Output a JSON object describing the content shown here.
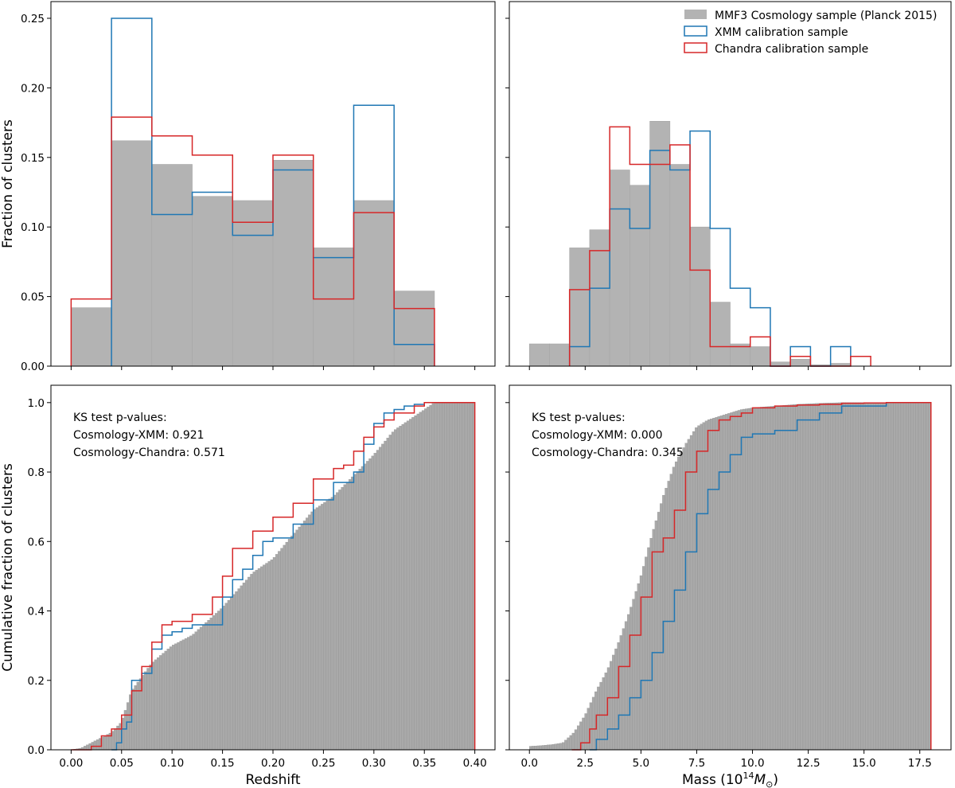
{
  "chart_data": [
    {
      "id": "hist-redshift",
      "type": "histogram",
      "title": "",
      "xlabel": "",
      "ylabel": "Fraction of clusters",
      "xlim": [
        -0.02,
        0.42
      ],
      "ylim": [
        0,
        0.262
      ],
      "xticks": [
        0.0,
        0.05,
        0.1,
        0.15,
        0.2,
        0.25,
        0.3,
        0.35,
        0.4
      ],
      "xticklabels": [],
      "yticks": [
        0.0,
        0.05,
        0.1,
        0.15,
        0.2,
        0.25
      ],
      "yticklabels": [
        "0.00",
        "0.05",
        "0.10",
        "0.15",
        "0.20",
        "0.25"
      ],
      "bin_edges": [
        0.0,
        0.04,
        0.08,
        0.12,
        0.16,
        0.2,
        0.24,
        0.28,
        0.32,
        0.36,
        0.4
      ],
      "series": [
        {
          "name": "MMF3 Cosmology sample (Planck 2015)",
          "style": "filled",
          "color": "#b3b3b3",
          "values": [
            0.042,
            0.162,
            0.145,
            0.122,
            0.119,
            0.148,
            0.085,
            0.119,
            0.054,
            0.0
          ]
        },
        {
          "name": "XMM calibration sample",
          "style": "step",
          "color": "#1f77b4",
          "values": [
            0.0,
            0.25,
            0.109,
            0.125,
            0.094,
            0.141,
            0.078,
            0.1875,
            0.0156,
            0.0
          ]
        },
        {
          "name": "Chandra calibration sample",
          "style": "step",
          "color": "#d62728",
          "values": [
            0.0483,
            0.179,
            0.1655,
            0.1517,
            0.1034,
            0.1517,
            0.0483,
            0.1103,
            0.0414,
            0.0
          ]
        }
      ]
    },
    {
      "id": "hist-mass",
      "type": "histogram",
      "title": "",
      "xlabel": "",
      "ylabel": "",
      "xlim": [
        -0.9,
        18.9
      ],
      "ylim": [
        0,
        0.262
      ],
      "xticks": [
        0.0,
        2.5,
        5.0,
        7.5,
        10.0,
        12.5,
        15.0,
        17.5
      ],
      "xticklabels": [],
      "yticks": [
        0.0,
        0.05,
        0.1,
        0.15,
        0.2,
        0.25
      ],
      "yticklabels": [],
      "bin_edges": [
        0.0,
        0.9,
        1.8,
        2.7,
        3.6,
        4.5,
        5.4,
        6.3,
        7.2,
        8.1,
        9.0,
        9.9,
        10.8,
        11.7,
        12.6,
        13.5,
        14.4,
        15.3,
        16.2,
        17.1,
        18.0
      ],
      "legend": {
        "placement": "upper right",
        "title": "",
        "entries": [
          "MMF3 Cosmology sample (Planck 2015)",
          "XMM calibration sample",
          "Chandra calibration sample"
        ]
      },
      "series": [
        {
          "name": "MMF3 Cosmology sample (Planck 2015)",
          "style": "filled",
          "color": "#b3b3b3",
          "values": [
            0.016,
            0.016,
            0.085,
            0.098,
            0.141,
            0.13,
            0.176,
            0.145,
            0.1,
            0.046,
            0.016,
            0.014,
            0.003,
            0.005,
            0.001,
            0.002,
            0.0,
            0.0,
            0.0,
            0.0
          ]
        },
        {
          "name": "XMM calibration sample",
          "style": "step",
          "color": "#1f77b4",
          "values": [
            0.0,
            0.0,
            0.014,
            0.056,
            0.113,
            0.099,
            0.155,
            0.141,
            0.169,
            0.099,
            0.056,
            0.042,
            0.0,
            0.014,
            0.0,
            0.014,
            0.0,
            0.0,
            0.0,
            0.0
          ]
        },
        {
          "name": "Chandra calibration sample",
          "style": "step",
          "color": "#d62728",
          "values": [
            0.0,
            0.0,
            0.055,
            0.083,
            0.172,
            0.145,
            0.145,
            0.159,
            0.069,
            0.014,
            0.014,
            0.021,
            0.0,
            0.007,
            0.0,
            0.0,
            0.007,
            0.0,
            0.0,
            0.0
          ]
        }
      ]
    },
    {
      "id": "cdf-redshift",
      "type": "step",
      "title": "",
      "xlabel": "Redshift",
      "ylabel": "Cumulative fraction of clusters",
      "xlim": [
        -0.02,
        0.42
      ],
      "ylim": [
        0,
        1.05
      ],
      "xticks": [
        0.0,
        0.05,
        0.1,
        0.15,
        0.2,
        0.25,
        0.3,
        0.35,
        0.4
      ],
      "xticklabels": [
        "0.00",
        "0.05",
        "0.10",
        "0.15",
        "0.20",
        "0.25",
        "0.30",
        "0.35",
        "0.40"
      ],
      "yticks": [
        0.0,
        0.2,
        0.4,
        0.6,
        0.8,
        1.0
      ],
      "yticklabels": [
        "0.0",
        "0.2",
        "0.4",
        "0.6",
        "0.8",
        "1.0"
      ],
      "annotation": {
        "lines": [
          "KS test p-values:",
          "Cosmology-XMM: 0.921",
          "Cosmology-Chandra: 0.571"
        ],
        "placement": "upper left"
      },
      "series": [
        {
          "name": "MMF3 Cosmology sample (Planck 2015)",
          "style": "filled",
          "color": "#a9a9a9",
          "x": [
            0.0,
            0.01,
            0.02,
            0.03,
            0.04,
            0.05,
            0.06,
            0.08,
            0.1,
            0.12,
            0.15,
            0.18,
            0.2,
            0.22,
            0.24,
            0.26,
            0.28,
            0.3,
            0.32,
            0.34,
            0.35,
            0.36,
            0.4
          ],
          "y": [
            0.0,
            0.005,
            0.02,
            0.035,
            0.05,
            0.08,
            0.17,
            0.25,
            0.3,
            0.33,
            0.41,
            0.51,
            0.55,
            0.62,
            0.69,
            0.73,
            0.79,
            0.85,
            0.92,
            0.96,
            0.98,
            1.0,
            1.0
          ]
        },
        {
          "name": "XMM calibration sample",
          "style": "step",
          "color": "#1f77b4",
          "x": [
            0.04,
            0.045,
            0.05,
            0.055,
            0.06,
            0.07,
            0.08,
            0.09,
            0.1,
            0.11,
            0.12,
            0.15,
            0.16,
            0.17,
            0.18,
            0.19,
            0.2,
            0.22,
            0.24,
            0.26,
            0.28,
            0.29,
            0.3,
            0.31,
            0.32,
            0.33,
            0.34,
            0.35,
            0.36,
            0.4
          ],
          "y": [
            0.0,
            0.02,
            0.06,
            0.08,
            0.2,
            0.22,
            0.29,
            0.33,
            0.34,
            0.35,
            0.36,
            0.44,
            0.49,
            0.52,
            0.56,
            0.6,
            0.61,
            0.65,
            0.72,
            0.77,
            0.8,
            0.88,
            0.94,
            0.97,
            0.98,
            0.99,
            0.995,
            1.0,
            1.0,
            1.0
          ]
        },
        {
          "name": "Chandra calibration sample",
          "style": "step",
          "color": "#d62728",
          "x": [
            0.0,
            0.02,
            0.03,
            0.04,
            0.05,
            0.06,
            0.07,
            0.08,
            0.09,
            0.1,
            0.12,
            0.14,
            0.15,
            0.16,
            0.18,
            0.2,
            0.22,
            0.24,
            0.26,
            0.27,
            0.28,
            0.29,
            0.3,
            0.31,
            0.32,
            0.34,
            0.35,
            0.36,
            0.4
          ],
          "y": [
            0.0,
            0.01,
            0.04,
            0.06,
            0.1,
            0.17,
            0.24,
            0.31,
            0.36,
            0.37,
            0.39,
            0.44,
            0.5,
            0.58,
            0.63,
            0.67,
            0.71,
            0.78,
            0.81,
            0.82,
            0.86,
            0.9,
            0.93,
            0.95,
            0.97,
            0.99,
            1.0,
            1.0,
            1.0
          ]
        }
      ]
    },
    {
      "id": "cdf-mass",
      "type": "step",
      "title": "",
      "xlabel": "Mass (10",
      "xlabel_superscript": "14",
      "xlabel_suffix": "M",
      "xlabel_subscript": "⊙",
      "xlabel_close": ")",
      "ylabel": "",
      "xlim": [
        -0.9,
        18.9
      ],
      "ylim": [
        0,
        1.05
      ],
      "xticks": [
        0.0,
        2.5,
        5.0,
        7.5,
        10.0,
        12.5,
        15.0,
        17.5
      ],
      "xticklabels": [
        "0.0",
        "2.5",
        "5.0",
        "7.5",
        "10.0",
        "12.5",
        "15.0",
        "17.5"
      ],
      "yticks": [
        0.0,
        0.2,
        0.4,
        0.6,
        0.8,
        1.0
      ],
      "yticklabels": [],
      "annotation": {
        "lines": [
          "KS test p-values:",
          "Cosmology-XMM: 0.000",
          "Cosmology-Chandra: 0.345"
        ],
        "placement": "upper left"
      },
      "series": [
        {
          "name": "MMF3 Cosmology sample (Planck 2015)",
          "style": "filled",
          "color": "#a9a9a9",
          "x": [
            0.0,
            0.5,
            1.0,
            1.5,
            2.0,
            2.5,
            3.0,
            3.5,
            4.0,
            4.5,
            5.0,
            5.5,
            6.0,
            6.5,
            7.0,
            7.5,
            8.0,
            8.5,
            9.0,
            9.5,
            10.0,
            11.0,
            12.0,
            13.0,
            14.0,
            15.0,
            18.0
          ],
          "y": [
            0.01,
            0.012,
            0.015,
            0.02,
            0.05,
            0.1,
            0.17,
            0.23,
            0.31,
            0.4,
            0.5,
            0.62,
            0.73,
            0.82,
            0.88,
            0.93,
            0.95,
            0.96,
            0.97,
            0.98,
            0.985,
            0.99,
            0.995,
            0.998,
            1.0,
            1.0,
            1.0
          ]
        },
        {
          "name": "XMM calibration sample",
          "style": "step",
          "color": "#1f77b4",
          "x": [
            2.7,
            3.0,
            3.5,
            4.0,
            4.5,
            5.0,
            5.5,
            6.0,
            6.5,
            7.0,
            7.5,
            8.0,
            8.5,
            9.0,
            9.5,
            10.0,
            11.0,
            12.0,
            13.0,
            14.0,
            15.0,
            16.0,
            18.0
          ],
          "y": [
            0.0,
            0.03,
            0.06,
            0.1,
            0.15,
            0.2,
            0.28,
            0.37,
            0.46,
            0.57,
            0.68,
            0.75,
            0.8,
            0.85,
            0.9,
            0.91,
            0.92,
            0.95,
            0.97,
            0.99,
            0.99,
            1.0,
            1.0
          ]
        },
        {
          "name": "Chandra calibration sample",
          "style": "step",
          "color": "#d62728",
          "x": [
            1.9,
            2.3,
            2.7,
            3.0,
            3.5,
            4.0,
            4.5,
            5.0,
            5.5,
            6.0,
            6.5,
            7.0,
            7.5,
            8.0,
            8.5,
            9.0,
            9.5,
            10.0,
            11.0,
            12.0,
            13.0,
            14.0,
            15.0,
            16.0,
            18.0
          ],
          "y": [
            0.0,
            0.02,
            0.06,
            0.1,
            0.15,
            0.24,
            0.33,
            0.44,
            0.57,
            0.61,
            0.69,
            0.8,
            0.86,
            0.92,
            0.95,
            0.96,
            0.97,
            0.985,
            0.99,
            0.993,
            0.995,
            0.998,
            0.999,
            1.0,
            1.0
          ]
        }
      ]
    }
  ]
}
